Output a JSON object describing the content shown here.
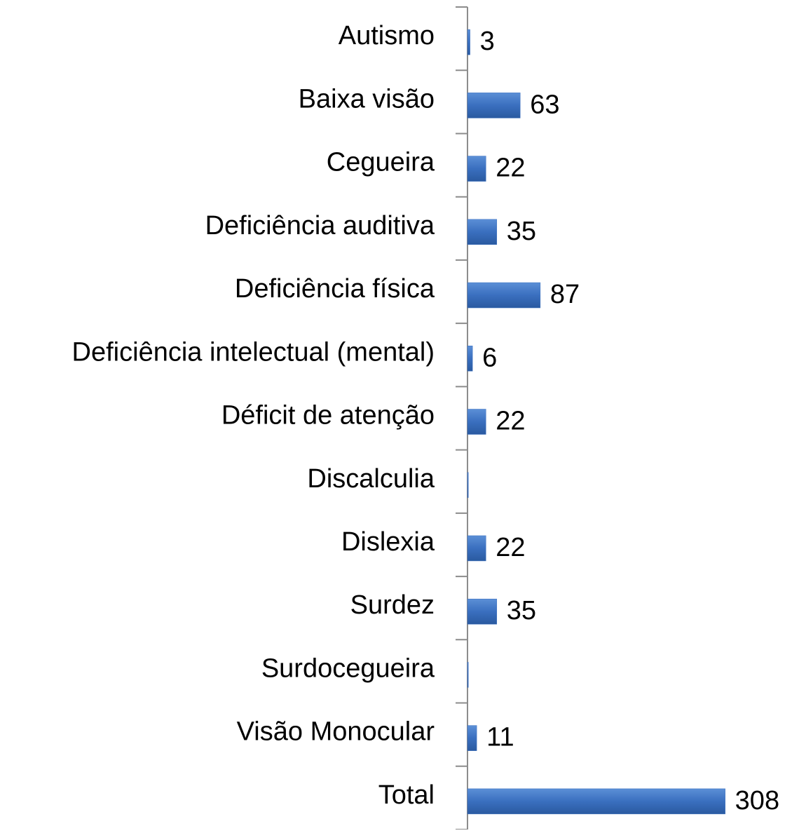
{
  "chart_data": {
    "type": "hbar",
    "categories": [
      "Autismo",
      "Baixa visão",
      "Cegueira",
      "Deficiência auditiva",
      "Deficiência física",
      "Deficiência intelectual (mental)",
      "Déficit de atenção",
      "Discalculia",
      "Dislexia",
      "Surdez",
      "Surdocegueira",
      "Visão Monocular",
      "Total"
    ],
    "values": [
      3,
      63,
      22,
      35,
      87,
      6,
      22,
      1,
      22,
      35,
      1,
      11,
      308
    ],
    "value_labels": [
      "3",
      "63",
      "22",
      "35",
      "87",
      "6",
      "22",
      null,
      "22",
      "35",
      null,
      "11",
      "308"
    ],
    "color": "#3a6fbf",
    "xlim": [
      0,
      320
    ]
  }
}
